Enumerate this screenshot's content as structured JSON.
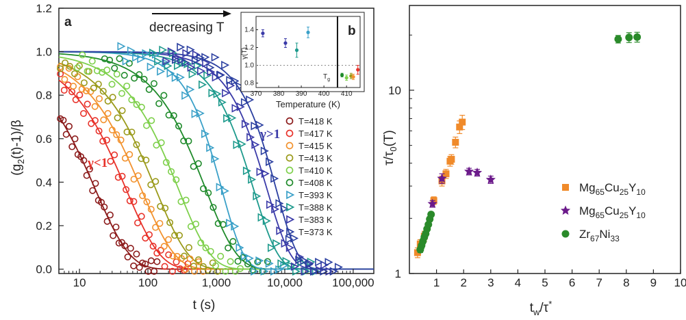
{
  "chart_data": [
    {
      "panel": "a",
      "type": "scatter",
      "xlabel": "t (s)",
      "ylabel": "(g2(t)-1)/β",
      "xscale": "log",
      "xlim": [
        5,
        200000
      ],
      "ylim": [
        -0.02,
        1.2
      ],
      "xticks": [
        10,
        100,
        1000,
        10000,
        100000
      ],
      "xtick_labels": [
        "10",
        "100",
        "1,000",
        "10,000",
        "100,000"
      ],
      "yticks": [
        0.0,
        0.2,
        0.4,
        0.6,
        0.8,
        1.0,
        1.2
      ],
      "ytick_labels": [
        "0.0",
        "0.2",
        "0.4",
        "0.6",
        "0.8",
        "1.0",
        "1.2"
      ],
      "annotation_arrow": "decreasing T",
      "annotation_lt": "γ<1",
      "annotation_gt": "γ>1",
      "legend_position": "right",
      "series": [
        {
          "name": "T=418 K",
          "color": "#8b1a1a",
          "marker": "circle",
          "tau": 17,
          "gamma": 0.85
        },
        {
          "name": "T=417 K",
          "color": "#e8322a",
          "marker": "circle",
          "tau": 48,
          "gamma": 0.87
        },
        {
          "name": "T=415 K",
          "color": "#f2922e",
          "marker": "circle",
          "tau": 80,
          "gamma": 0.88
        },
        {
          "name": "T=413 K",
          "color": "#9a9a1a",
          "marker": "circle",
          "tau": 130,
          "gamma": 0.9
        },
        {
          "name": "T=410 K",
          "color": "#7ed04b",
          "marker": "circle",
          "tau": 280,
          "gamma": 0.92
        },
        {
          "name": "T=408 K",
          "color": "#1e8a2a",
          "marker": "circle",
          "tau": 700,
          "gamma": 0.94
        },
        {
          "name": "T=393 K",
          "color": "#3aa0c8",
          "marker": "triangle",
          "tau": 1200,
          "gamma": 1.35
        },
        {
          "name": "T=388 K",
          "color": "#1d9a8c",
          "marker": "triangle",
          "tau": 3500,
          "gamma": 1.2
        },
        {
          "name": "T=383 K",
          "color": "#3a3aa8",
          "marker": "triangle",
          "tau": 5500,
          "gamma": 1.25
        },
        {
          "name": "T=373 K",
          "color": "#2a3fa0",
          "marker": "triangle",
          "tau": 7500,
          "gamma": 1.35
        }
      ]
    },
    {
      "panel": "b",
      "type": "scatter",
      "inset_of": "a",
      "xlabel": "Temperature (K)",
      "ylabel": "γ(T)",
      "xlim": [
        370,
        416
      ],
      "ylim": [
        0.75,
        1.55
      ],
      "xticks": [
        370,
        380,
        390,
        400,
        410
      ],
      "yticks": [
        0.8,
        1.0,
        1.2,
        1.4
      ],
      "ytick_labels": [
        "0.8",
        "1.0",
        "1.2",
        "1.4"
      ],
      "reference_line_y": 1.0,
      "marker_label": "T_g",
      "marker_line_x": 406,
      "points": [
        {
          "x": 373,
          "y": 1.36,
          "err": 0.04,
          "color": "#3a3aa8"
        },
        {
          "x": 383,
          "y": 1.25,
          "err": 0.05,
          "color": "#3a3aa8"
        },
        {
          "x": 388,
          "y": 1.17,
          "err": 0.08,
          "color": "#1d9a8c"
        },
        {
          "x": 393,
          "y": 1.37,
          "err": 0.06,
          "color": "#3aa0c8"
        },
        {
          "x": 408,
          "y": 0.89,
          "err": 0.02,
          "color": "#1e8a2a"
        },
        {
          "x": 410,
          "y": 0.86,
          "err": 0.03,
          "color": "#7ed04b"
        },
        {
          "x": 412,
          "y": 0.88,
          "err": 0.03,
          "color": "#9a9a1a"
        },
        {
          "x": 413,
          "y": 0.87,
          "err": 0.03,
          "color": "#f2922e"
        },
        {
          "x": 415,
          "y": 0.95,
          "err": 0.05,
          "color": "#e8322a"
        }
      ]
    },
    {
      "panel": "c",
      "type": "scatter",
      "xlabel": "tw/τ*",
      "ylabel": "τ/τ0(T)",
      "yscale": "log",
      "xlim": [
        0,
        10
      ],
      "ylim": [
        1,
        29
      ],
      "xticks": [
        1,
        2,
        3,
        4,
        5,
        6,
        7,
        8,
        9,
        10
      ],
      "yticks": [
        1,
        10
      ],
      "legend_position": "bottom-right",
      "series": [
        {
          "name": "Mg65Cu25Y10",
          "color": "#f08a2a",
          "marker": "square",
          "x": [
            0.3,
            0.4,
            0.55,
            0.9,
            1.2,
            1.35,
            1.5,
            1.55,
            1.7,
            1.85,
            1.95
          ],
          "y": [
            1.3,
            1.45,
            1.6,
            2.5,
            3.2,
            3.5,
            4.1,
            4.2,
            5.2,
            6.3,
            6.7
          ],
          "err": [
            0.08,
            0.08,
            0.1,
            0.12,
            0.2,
            0.2,
            0.25,
            0.25,
            0.35,
            0.5,
            0.6
          ]
        },
        {
          "name": "Mg65Cu25Y10",
          "color": "#6b1a8a",
          "marker": "star",
          "x": [
            0.85,
            1.2,
            2.2,
            2.5,
            3.0
          ],
          "y": [
            2.4,
            3.3,
            3.6,
            3.55,
            3.25
          ],
          "err": [
            0.1,
            0.2,
            0.15,
            0.15,
            0.15
          ]
        },
        {
          "name": "Zr67Ni33",
          "color": "#2a8a2a",
          "marker": "circle",
          "x": [
            0.4,
            0.45,
            0.5,
            0.55,
            0.6,
            0.65,
            0.7,
            0.75,
            0.8,
            7.7,
            8.1,
            8.4
          ],
          "y": [
            1.35,
            1.42,
            1.5,
            1.58,
            1.65,
            1.75,
            1.85,
            1.98,
            2.1,
            19.0,
            19.4,
            19.5
          ],
          "err": [
            0.05,
            0.05,
            0.05,
            0.05,
            0.05,
            0.05,
            0.05,
            0.06,
            0.06,
            0.9,
            1.2,
            1.2
          ]
        }
      ]
    }
  ],
  "labels": {
    "panel_a": "a",
    "panel_b": "b",
    "tg_main": "T",
    "tg_sub": "g",
    "legend_c": [
      {
        "main": "Mg",
        "sub1": "65",
        "mid1": "Cu",
        "sub2": "25",
        "mid2": "Y",
        "sub3": "10"
      },
      {
        "main": "Mg",
        "sub1": "65",
        "mid1": "Cu",
        "sub2": "25",
        "mid2": "Y",
        "sub3": "10"
      },
      {
        "main": "Zr",
        "sub1": "67",
        "mid1": "Ni",
        "sub2": "33",
        "mid2": "",
        "sub3": ""
      }
    ],
    "xlabel_c_main": "t",
    "xlabel_c_sub": "w",
    "xlabel_c_mid": "/τ",
    "xlabel_c_sup": "*",
    "ylabel_c_main": "τ/τ",
    "ylabel_c_sub": "0",
    "ylabel_c_end": "(T)",
    "ylabel_a_main": "(g",
    "ylabel_a_sub": "2",
    "ylabel_a_end": "(t)-1)/β"
  },
  "colors": {
    "axis": "#222222",
    "grid_ref": "#888888"
  }
}
